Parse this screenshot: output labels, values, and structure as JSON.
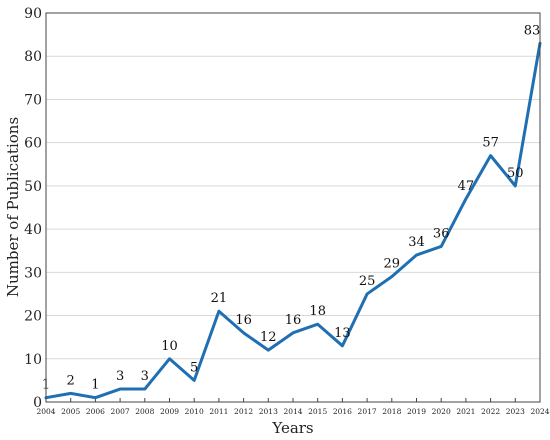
{
  "chart_data": {
    "type": "line",
    "title": "",
    "xlabel": "Years",
    "ylabel": "Number of Publications",
    "ylim": [
      0,
      90
    ],
    "y_ticks": [
      0,
      10,
      20,
      30,
      40,
      50,
      60,
      70,
      80,
      90
    ],
    "grid": "horizontal",
    "line_color": "#1f6fb2",
    "x": [
      "2004",
      "2005",
      "2006",
      "2007",
      "2008",
      "2009",
      "2010",
      "2011",
      "2012",
      "2013",
      "2014",
      "2015",
      "2016",
      "2017",
      "2018",
      "2019",
      "2020",
      "2021",
      "2022",
      "2023",
      "2024"
    ],
    "series": [
      {
        "values": [
          1,
          2,
          1,
          3,
          3,
          10,
          5,
          21,
          16,
          12,
          16,
          18,
          13,
          25,
          29,
          34,
          36,
          47,
          57,
          50,
          83
        ]
      }
    ]
  }
}
